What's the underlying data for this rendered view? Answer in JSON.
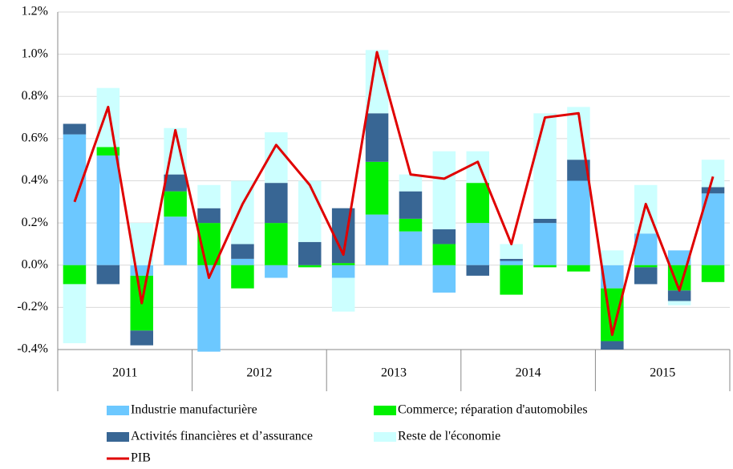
{
  "chart_data": {
    "type": "bar",
    "categories": [
      null,
      null,
      null,
      null,
      null,
      null,
      null,
      null,
      null,
      null,
      null,
      null,
      null,
      null,
      null,
      null,
      null,
      null,
      null,
      null
    ],
    "groups": [
      "2011",
      "2012",
      "2013",
      "2014",
      "2015"
    ],
    "stacked": true,
    "grid": true,
    "legend": "bottom",
    "ylim": [
      -0.4,
      1.2
    ],
    "yticks": [
      {
        "value": -0.4,
        "label": "-0.4%"
      },
      {
        "value": -0.2,
        "label": "-0.2%"
      },
      {
        "value": 0,
        "label": "0.0%"
      },
      {
        "value": 0.2,
        "label": "0.2%"
      },
      {
        "value": 0.4,
        "label": "0.4%"
      },
      {
        "value": 0.6,
        "label": "0.6%"
      },
      {
        "value": 0.8,
        "label": "0.8%"
      },
      {
        "value": 1.0,
        "label": "1.0%"
      },
      {
        "value": 1.2,
        "label": "1.2%"
      }
    ],
    "series": [
      {
        "name": "Industrie manufacturière",
        "color": "#6cc8ff",
        "type": "bar",
        "values": [
          0.62,
          0.52,
          -0.05,
          0.23,
          -0.41,
          0.03,
          -0.06,
          0,
          -0.06,
          0.24,
          0.16,
          -0.13,
          0.2,
          0.02,
          0.2,
          0.4,
          -0.11,
          0.15,
          0.07,
          0.34
        ]
      },
      {
        "name": "Commerce; réparation d'automobiles",
        "color": "#00f000",
        "type": "bar",
        "values": [
          -0.09,
          0.04,
          -0.26,
          0.12,
          0.2,
          -0.11,
          0.2,
          -0.01,
          0.01,
          0.25,
          0.06,
          0.1,
          0.19,
          -0.14,
          -0.01,
          -0.03,
          -0.25,
          -0.01,
          -0.12,
          -0.08
        ]
      },
      {
        "name": "Activités financières et d’assurance",
        "color": "#386694",
        "type": "bar",
        "values": [
          0.05,
          -0.09,
          -0.07,
          0.08,
          0.07,
          0.07,
          0.19,
          0.11,
          0.26,
          0.23,
          0.13,
          0.07,
          -0.05,
          0.01,
          0.02,
          0.1,
          -0.04,
          -0.08,
          -0.05,
          0.03
        ]
      },
      {
        "name": "Reste de l'économie",
        "color": "#ccffff",
        "type": "bar",
        "values": [
          -0.28,
          0.28,
          0.2,
          0.22,
          0.11,
          0.3,
          0.24,
          0.29,
          -0.16,
          0.3,
          0.08,
          0.37,
          0.15,
          0.07,
          0.5,
          0.25,
          0.07,
          0.23,
          -0.02,
          0.13
        ]
      },
      {
        "name": "PIB",
        "color": "#e00000",
        "type": "line",
        "values": [
          0.3,
          0.75,
          -0.18,
          0.64,
          -0.06,
          0.29,
          0.57,
          0.38,
          0.05,
          1.01,
          0.43,
          0.41,
          0.49,
          0.1,
          0.7,
          0.72,
          -0.33,
          0.29,
          -0.12,
          0.42
        ]
      }
    ]
  }
}
